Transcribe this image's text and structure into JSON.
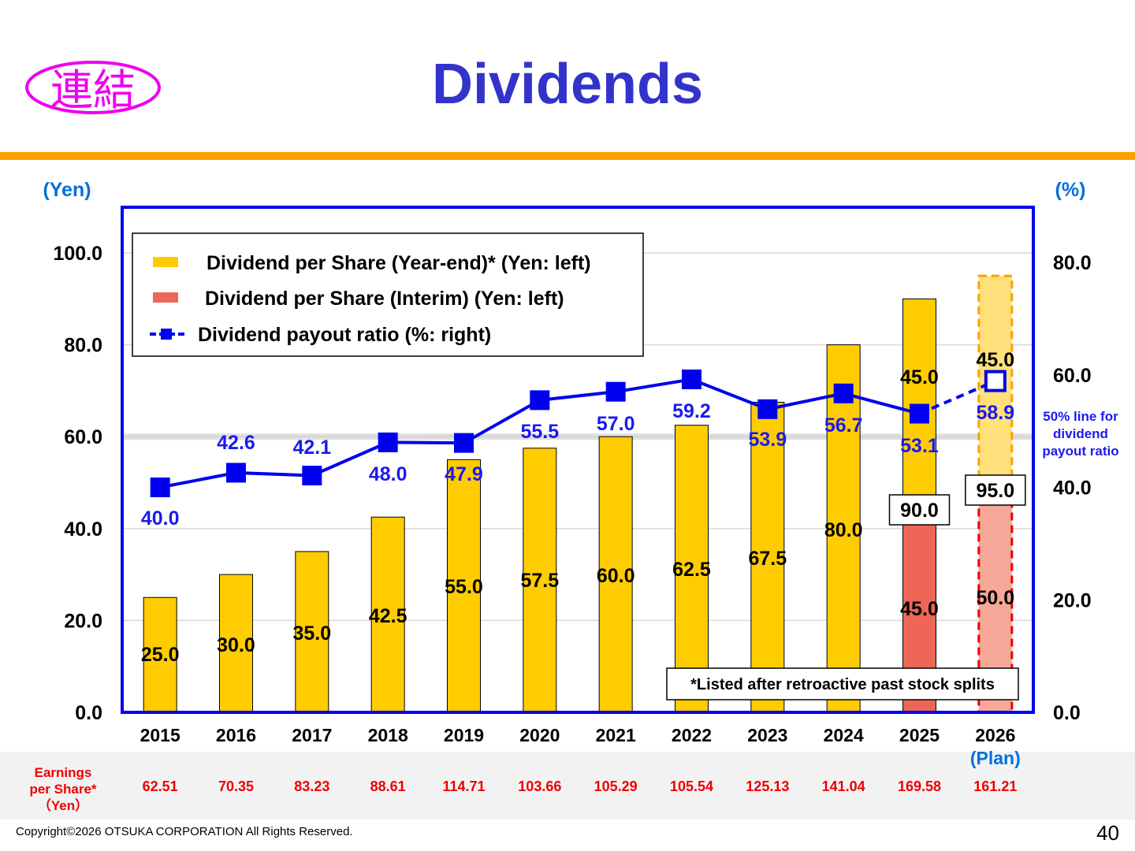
{
  "header": {
    "badge_text": "連結",
    "title": "Dividends"
  },
  "chart_data": {
    "type": "bar",
    "categories": [
      "2015",
      "2016",
      "2017",
      "2018",
      "2019",
      "2020",
      "2021",
      "2022",
      "2023",
      "2024",
      "2025",
      "2026"
    ],
    "category_sublabels": {
      "2026": "(Plan)"
    },
    "left_axis": {
      "label": "(Yen)",
      "ylim": [
        0,
        100
      ],
      "ticks": [
        "0.0",
        "20.0",
        "40.0",
        "60.0",
        "80.0",
        "100.0"
      ]
    },
    "right_axis": {
      "label": "(%)",
      "ylim": [
        0,
        80
      ],
      "ticks": [
        "0.0",
        "20.0",
        "40.0",
        "60.0",
        "80.0"
      ]
    },
    "series": [
      {
        "name": "Dividend per Share (Year-end)* (Yen: left)",
        "type": "bar",
        "axis": "left",
        "color": "#ffcc00",
        "values": [
          25.0,
          30.0,
          35.0,
          42.5,
          55.0,
          57.5,
          60.0,
          62.5,
          67.5,
          80.0,
          45.0,
          45.0
        ],
        "labels": [
          "25.0",
          "30.0",
          "35.0",
          "42.5",
          "55.0",
          "57.5",
          "60.0",
          "62.5",
          "67.5",
          "80.0",
          "45.0",
          "45.0"
        ]
      },
      {
        "name": "Dividend per Share (Interim)  (Yen: left)",
        "type": "bar",
        "axis": "left",
        "color": "#ee6655",
        "values": [
          null,
          null,
          null,
          null,
          null,
          null,
          null,
          null,
          null,
          null,
          45.0,
          50.0
        ],
        "labels": [
          "",
          "",
          "",
          "",
          "",
          "",
          "",
          "",
          "",
          "",
          "45.0",
          "50.0"
        ]
      },
      {
        "name": "Dividend payout ratio (%: right)",
        "type": "line",
        "axis": "right",
        "color": "#0000ee",
        "values": [
          40.0,
          42.6,
          42.1,
          48.0,
          47.9,
          55.5,
          57.0,
          59.2,
          53.9,
          56.7,
          53.1,
          58.9
        ],
        "labels": [
          "40.0",
          "42.6",
          "42.1",
          "48.0",
          "47.9",
          "55.5",
          "57.0",
          "59.2",
          "53.9",
          "56.7",
          "53.1",
          "58.9"
        ]
      }
    ],
    "totals": {
      "2025": "90.0",
      "2026": "95.0"
    },
    "plan_categories": [
      "2026"
    ],
    "reference_line": {
      "axis": "left",
      "value": 60,
      "label": [
        "50% line for",
        "dividend",
        "payout ratio"
      ]
    },
    "legend_position": "top-left",
    "note": "*Listed after retroactive past stock splits",
    "grid": true
  },
  "eps": {
    "label": [
      "Earnings",
      "per Share*",
      "（Yen）"
    ],
    "values": [
      "62.51",
      "70.35",
      "83.23",
      "88.61",
      "114.71",
      "103.66",
      "105.29",
      "105.54",
      "125.13",
      "141.04",
      "169.58",
      "161.21"
    ]
  },
  "footer": {
    "copyright": "Copyright©2026 OTSUKA CORPORATION All Rights Reserved.",
    "page_number": "40"
  },
  "colors": {
    "title": "#3333cc",
    "accent_bar": "#ffa000",
    "frame": "#0000ee",
    "badge": "#ee00ee",
    "eps": "#ee0000"
  }
}
